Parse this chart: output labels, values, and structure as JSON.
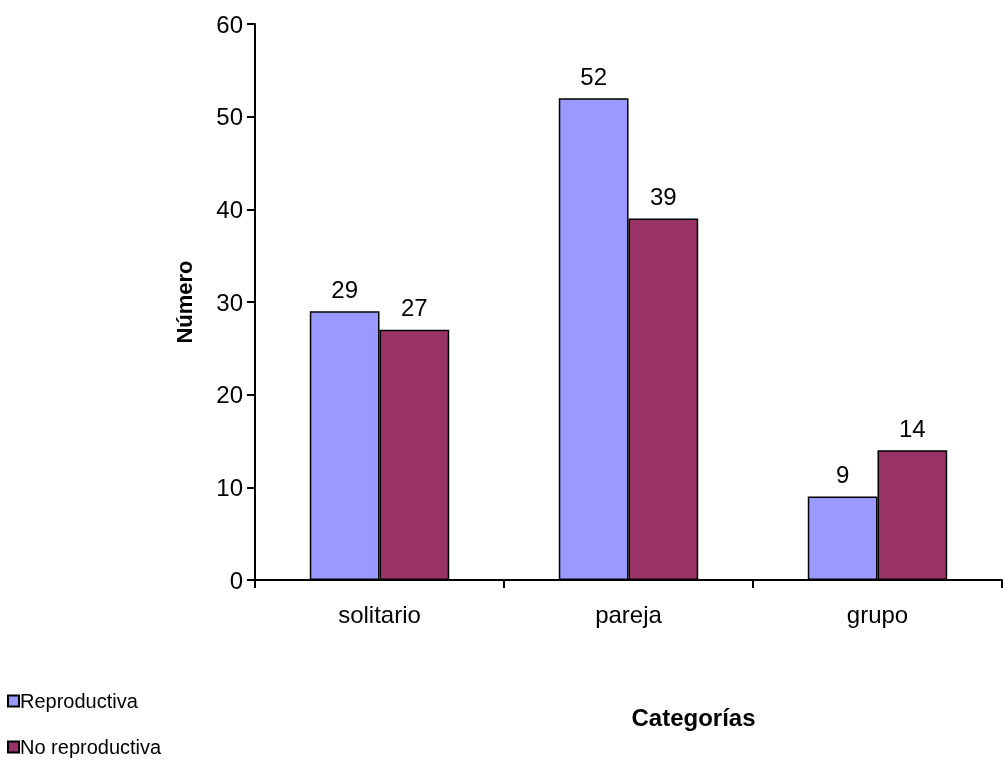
{
  "chart_data": {
    "type": "bar",
    "xlabel": "Categorías",
    "ylabel": "Número",
    "categories": [
      "solitario",
      "pareja",
      "grupo"
    ],
    "series": [
      {
        "name": "Reproductiva",
        "color": "#9999ff",
        "values": [
          29,
          52,
          9
        ]
      },
      {
        "name": "No reproductiva",
        "color": "#993366",
        "values": [
          27,
          39,
          14
        ]
      }
    ],
    "ylim": [
      0,
      60
    ],
    "yticks": [
      0,
      10,
      20,
      30,
      40,
      50,
      60
    ],
    "grid": false,
    "legend": "bottom left",
    "data_labels": true
  }
}
